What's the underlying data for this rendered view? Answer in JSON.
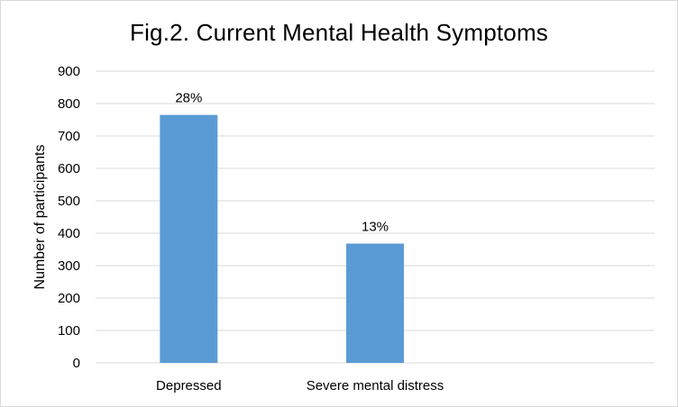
{
  "chart_data": {
    "type": "bar",
    "title": "Fig.2. Current Mental Health Symptoms",
    "xlabel": "",
    "ylabel": "Number of participants",
    "categories": [
      "Depressed",
      "Severe mental distress",
      ""
    ],
    "values": [
      765,
      368,
      null
    ],
    "data_labels": [
      "28%",
      "13%",
      ""
    ],
    "ylim": [
      0,
      900
    ],
    "yticks": [
      0,
      100,
      200,
      300,
      400,
      500,
      600,
      700,
      800,
      900
    ],
    "grid": true,
    "legend": "none",
    "bar_color": "#5b9bd5",
    "grid_color": "#d9d9d9"
  }
}
